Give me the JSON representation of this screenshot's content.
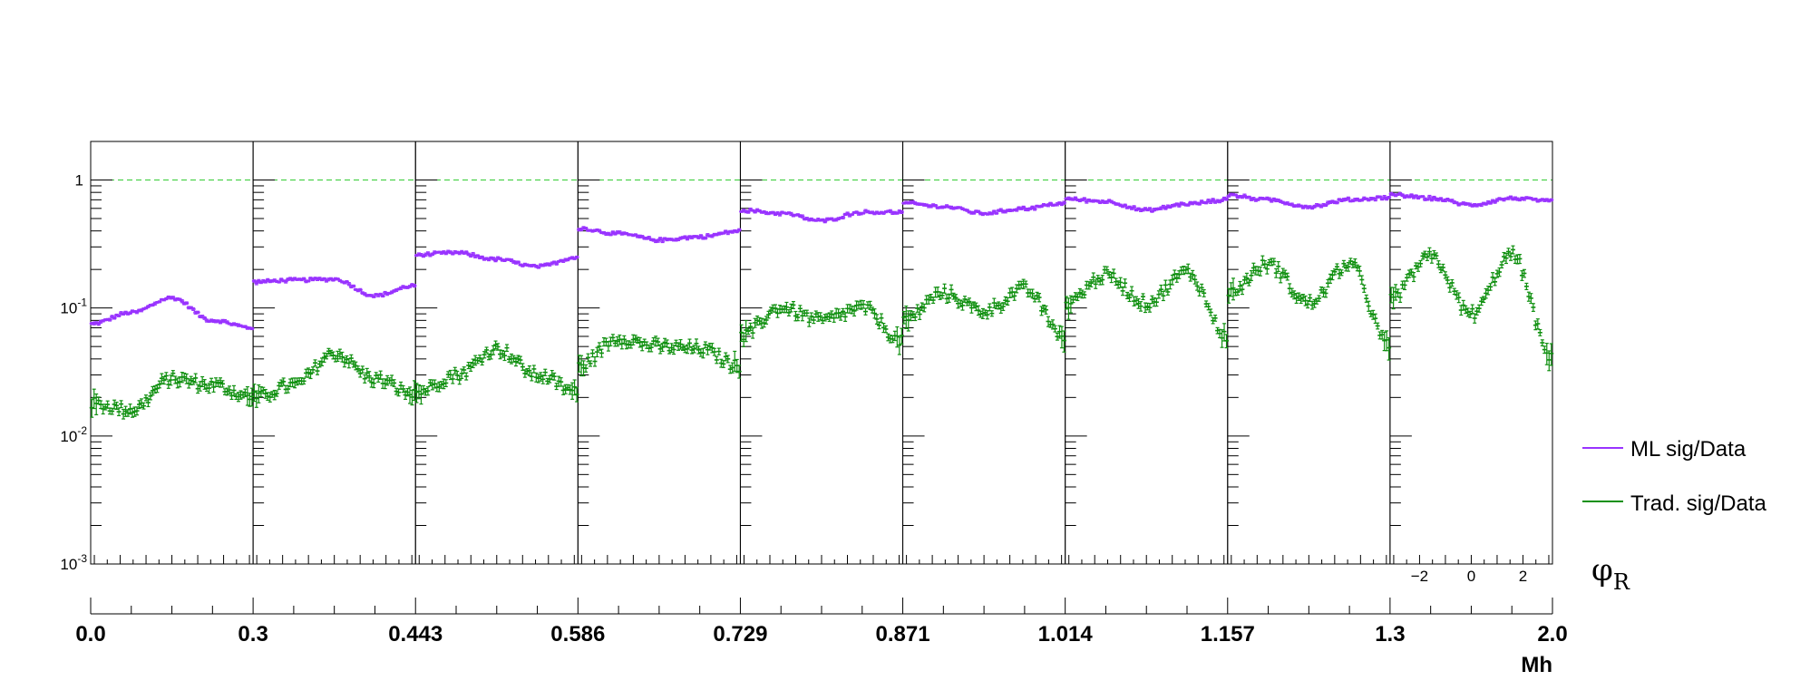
{
  "chart_data": {
    "type": "scatter",
    "yscale": "log",
    "ylim": [
      0.001,
      2.0
    ],
    "y_tick_labels": [
      "10^{-3}",
      "10^{-2}",
      "10^{-1}",
      "1"
    ],
    "reference_line": 1,
    "bottom_axis": {
      "title": "Mh",
      "bin_edges": [
        "0.0",
        "0.3",
        "0.443",
        "0.586",
        "0.729",
        "0.871",
        "1.014",
        "1.157",
        "1.3",
        "2.0"
      ]
    },
    "inner_axis": {
      "title": "φ",
      "subscript": "R",
      "range": [
        -3.1416,
        3.1416
      ],
      "tick_labels": [
        "−2",
        "0",
        "2"
      ]
    },
    "legend": {
      "placement": "right",
      "entries": [
        {
          "label": "ML sig/Data",
          "color": "#9933ff"
        },
        {
          "label": "Trad. sig/Data",
          "color": "#109010"
        }
      ]
    },
    "colors": {
      "ml": "#9933ff",
      "trad": "#109010",
      "reference": "#33cc33"
    },
    "phi_nodes": [
      -3.1416,
      -1.5708,
      0,
      1.5708,
      3.1416
    ],
    "bins": [
      {
        "ml": [
          0.075,
          0.092,
          0.12,
          0.08,
          0.07
        ],
        "trad": [
          0.018,
          0.016,
          0.028,
          0.025,
          0.02
        ]
      },
      {
        "ml": [
          0.16,
          0.165,
          0.168,
          0.125,
          0.15
        ],
        "trad": [
          0.02,
          0.025,
          0.044,
          0.028,
          0.021
        ]
      },
      {
        "ml": [
          0.26,
          0.27,
          0.24,
          0.21,
          0.25
        ],
        "trad": [
          0.022,
          0.03,
          0.048,
          0.03,
          0.022
        ]
      },
      {
        "ml": [
          0.42,
          0.38,
          0.34,
          0.36,
          0.4
        ],
        "trad": [
          0.035,
          0.058,
          0.05,
          0.048,
          0.035
        ]
      },
      {
        "ml": [
          0.58,
          0.55,
          0.48,
          0.56,
          0.56
        ],
        "trad": [
          0.06,
          0.1,
          0.08,
          0.1,
          0.055
        ]
      },
      {
        "ml": [
          0.66,
          0.62,
          0.55,
          0.6,
          0.66
        ],
        "trad": [
          0.08,
          0.13,
          0.095,
          0.14,
          0.06
        ]
      },
      {
        "ml": [
          0.71,
          0.68,
          0.58,
          0.65,
          0.7
        ],
        "trad": [
          0.11,
          0.18,
          0.11,
          0.19,
          0.06
        ]
      },
      {
        "ml": [
          0.76,
          0.7,
          0.62,
          0.7,
          0.73
        ],
        "trad": [
          0.13,
          0.22,
          0.11,
          0.22,
          0.05
        ]
      },
      {
        "ml": [
          0.77,
          0.72,
          0.64,
          0.72,
          0.68
        ],
        "trad": [
          0.12,
          0.25,
          0.09,
          0.26,
          0.04
        ]
      }
    ]
  }
}
